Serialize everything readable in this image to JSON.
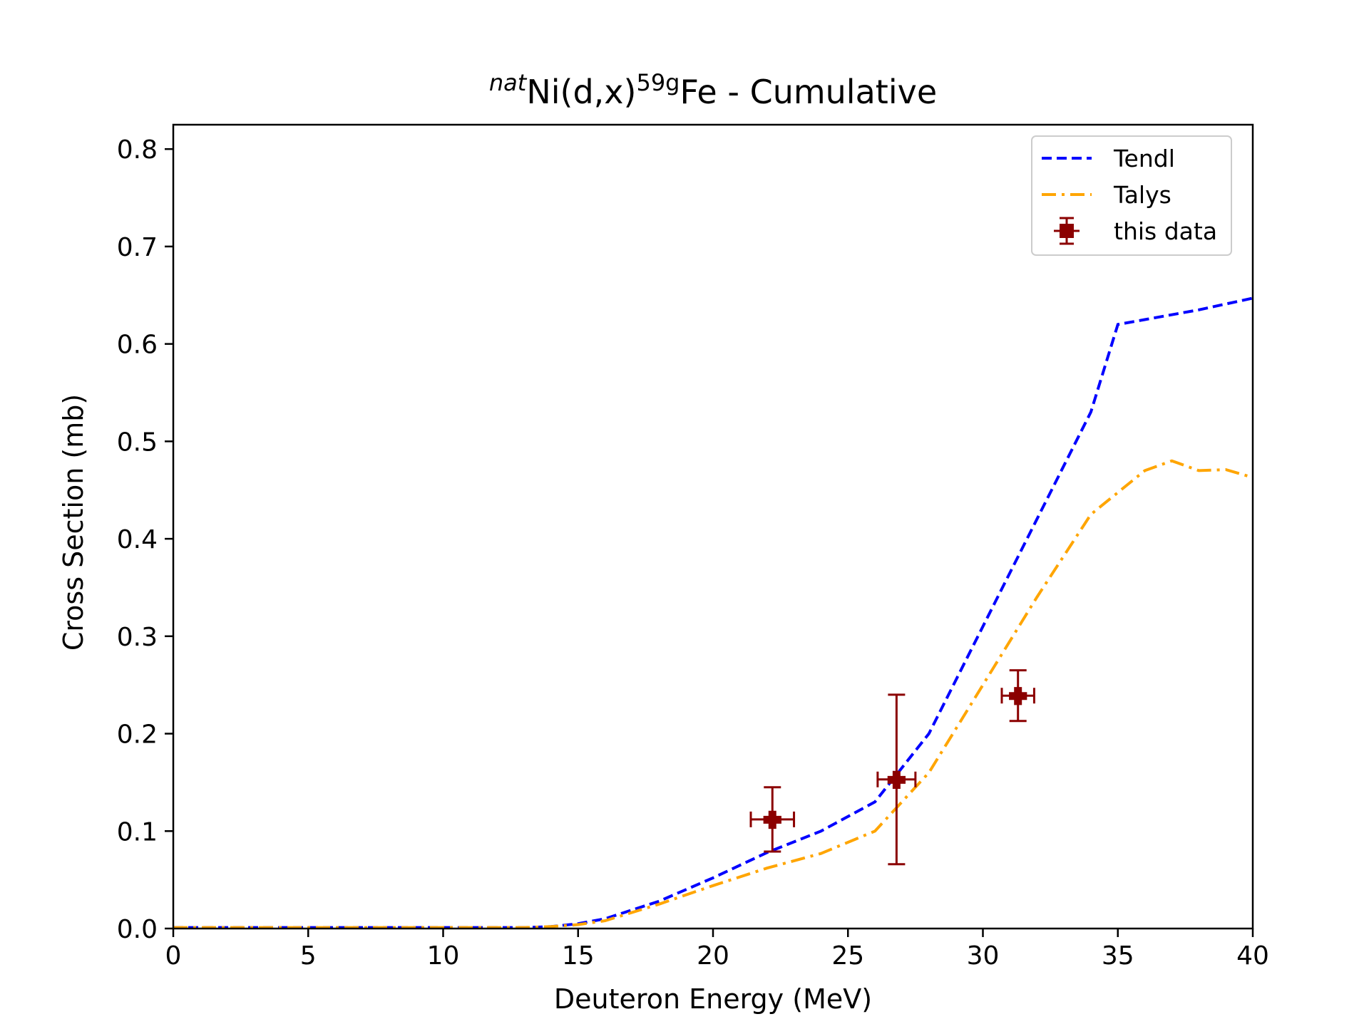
{
  "chart_data": {
    "type": "line",
    "title": {
      "prefix": "nat",
      "element": "Ni(d,x)",
      "product_mass": "59g",
      "suffix": "Fe - Cumulative"
    },
    "xlabel": "Deuteron Energy (MeV)",
    "ylabel": "Cross Section (mb)",
    "xlim": [
      0,
      40
    ],
    "ylim": [
      0,
      0.825
    ],
    "xticks": [
      0,
      5,
      10,
      15,
      20,
      25,
      30,
      35,
      40
    ],
    "yticks": [
      0.0,
      0.1,
      0.2,
      0.3,
      0.4,
      0.5,
      0.6,
      0.7,
      0.8
    ],
    "xtick_labels": [
      "0",
      "5",
      "10",
      "15",
      "20",
      "25",
      "30",
      "35",
      "40"
    ],
    "ytick_labels": [
      "0.0",
      "0.1",
      "0.2",
      "0.3",
      "0.4",
      "0.5",
      "0.6",
      "0.7",
      "0.8"
    ],
    "grid": false,
    "legend_position": "top-right",
    "series": [
      {
        "name": "Tendl",
        "style": "dashed",
        "color": "#0000ff",
        "x": [
          0,
          13,
          14,
          15,
          16,
          18,
          20,
          22,
          24,
          26,
          28,
          30,
          32,
          34,
          35,
          36,
          38,
          40
        ],
        "y": [
          0.001,
          0.001,
          0.002,
          0.005,
          0.01,
          0.028,
          0.052,
          0.078,
          0.1,
          0.13,
          0.2,
          0.31,
          0.42,
          0.53,
          0.62,
          0.625,
          0.635,
          0.647
        ]
      },
      {
        "name": "Talys",
        "style": "dashdot",
        "color": "#ffa500",
        "x": [
          0,
          13,
          14,
          15,
          16,
          18,
          20,
          22,
          24,
          26,
          28,
          30,
          32,
          34,
          36,
          37,
          38,
          39,
          40
        ],
        "y": [
          0.001,
          0.001,
          0.002,
          0.004,
          0.008,
          0.025,
          0.044,
          0.062,
          0.077,
          0.1,
          0.16,
          0.25,
          0.34,
          0.425,
          0.47,
          0.48,
          0.47,
          0.471,
          0.463
        ]
      },
      {
        "name": "this data",
        "style": "errorbar",
        "color": "#8b0000",
        "x": [
          22.2,
          26.8,
          31.3
        ],
        "y": [
          0.112,
          0.153,
          0.239
        ],
        "xerr": [
          0.8,
          0.7,
          0.6
        ],
        "yerr": [
          0.033,
          0.087,
          0.026
        ]
      }
    ]
  }
}
